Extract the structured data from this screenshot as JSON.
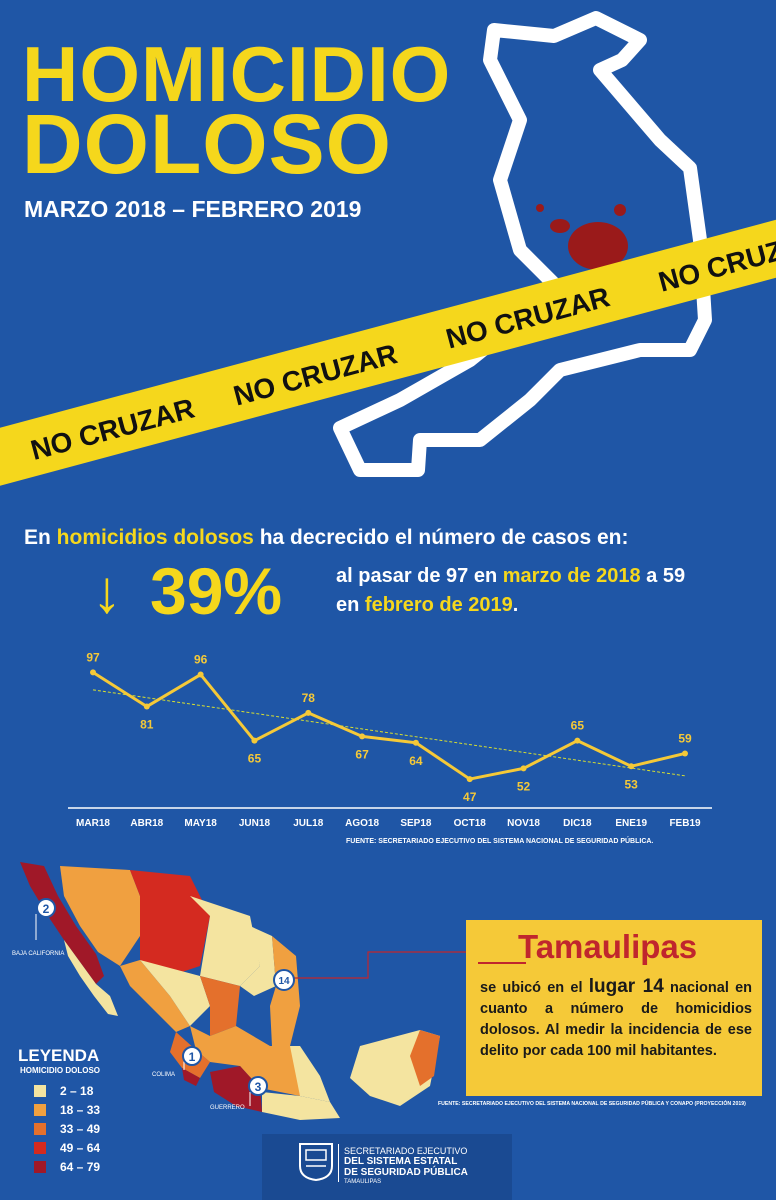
{
  "title_line1": "HOMICIDIO",
  "title_line2": "DOLOSO",
  "date_range": "MARZO 2018  – FEBRERO 2019",
  "tape_text": "NO CRUZAR",
  "headline": {
    "before": "En ",
    "highlight": "homicidios dolosos",
    "after": " ha decrecido el número de casos en:"
  },
  "arrow_glyph": "↓",
  "percent": "39%",
  "description": {
    "part1": "al pasar de 97 en ",
    "hl1": "marzo de 2018",
    "part2": " a 59 en ",
    "hl2": "febrero de 2019",
    "part3": "."
  },
  "colors": {
    "background": "#1f56a6",
    "accent_yellow": "#f5d71c",
    "line": "#f5c938",
    "trend": "#d8e030",
    "red": "#c0262d"
  },
  "chart_data": {
    "type": "line",
    "categories": [
      "MAR18",
      "ABR18",
      "MAY18",
      "JUN18",
      "JUL18",
      "AGO18",
      "SEP18",
      "OCT18",
      "NOV18",
      "DIC18",
      "ENE19",
      "FEB19"
    ],
    "values": [
      97,
      81,
      96,
      65,
      78,
      67,
      64,
      47,
      52,
      65,
      53,
      59
    ],
    "trendline": true,
    "source": "FUENTE: SECRETARIADO EJECUTIVO DEL SISTEMA NACIONAL DE SEGURIDAD PÚBLICA."
  },
  "map": {
    "legend_title": "LEYENDA",
    "legend_subtitle": "HOMICIDIO DOLOSO",
    "legend": [
      {
        "label": "2 – 18",
        "color": "#f4e4a0"
      },
      {
        "label": "18 – 33",
        "color": "#f0a040"
      },
      {
        "label": "33 – 49",
        "color": "#e4702c"
      },
      {
        "label": "49 – 64",
        "color": "#d42a20"
      },
      {
        "label": "64 – 79",
        "color": "#a01828"
      }
    ],
    "markers": [
      {
        "rank": "2",
        "state": "BAJA CALIFORNIA"
      },
      {
        "rank": "1",
        "state": "COLIMA"
      },
      {
        "rank": "3",
        "state": "GUERRERO"
      },
      {
        "rank": "14",
        "state": ""
      }
    ]
  },
  "infobox": {
    "title": "Tamaulipas",
    "t1": "se ubicó en el ",
    "t2": "lugar 14",
    "t3": " nacional en cuanto a número de homicidios dolosos. Al medir la incidencia de ese delito por cada 100 mil habitantes."
  },
  "source2": "FUENTE: SECRETARIADO EJECUTIVO DEL SISTEMA NACIONAL DE SEGURIDAD PÚBLICA Y CONAPO (PROYECCIÓN 2019)",
  "footer_logo": {
    "line1": "SECRETARIADO EJECUTIVO",
    "line2": "DEL SISTEMA ESTATAL",
    "line3": "DE SEGURIDAD PÚBLICA",
    "line4": "TAMAULIPAS"
  }
}
